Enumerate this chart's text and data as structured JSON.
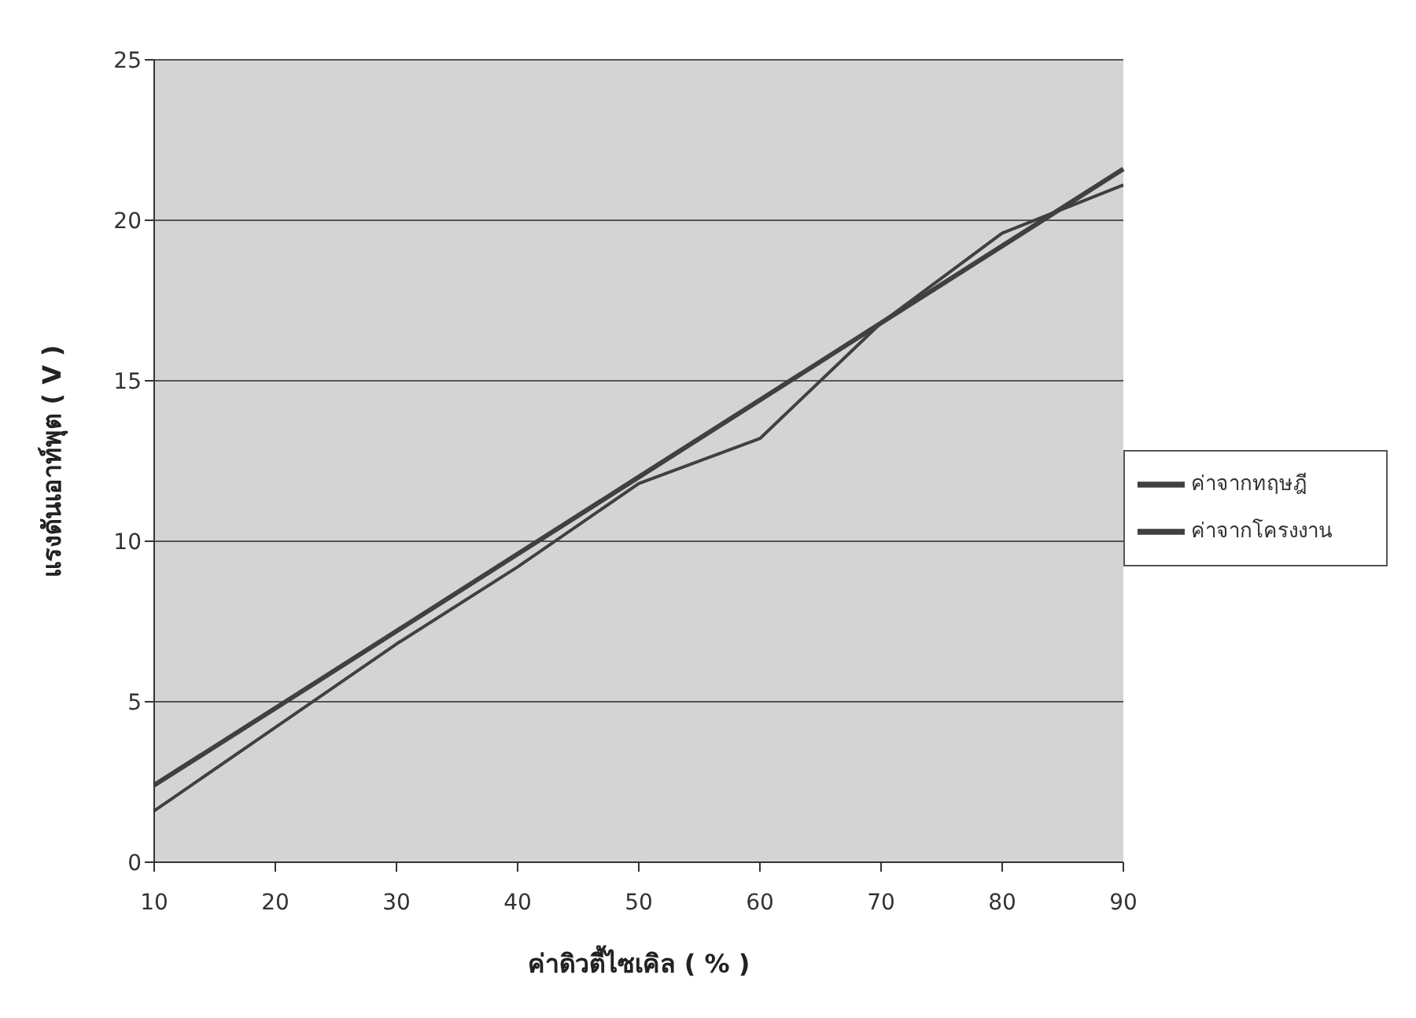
{
  "chart_data": {
    "type": "line",
    "xlabel": "ค่าดิวตี้ไซเคิล ( % )",
    "ylabel": "แรงดันเอาท์พุต ( V )",
    "categories": [
      "10",
      "20",
      "30",
      "40",
      "50",
      "60",
      "70",
      "80",
      "90"
    ],
    "series": [
      {
        "name": "ค่าจากทฤษฎี",
        "color": "#404040",
        "values": [
          2.4,
          4.8,
          7.2,
          9.6,
          12,
          14.4,
          16.8,
          19.2,
          21.6
        ]
      },
      {
        "name": "ค่าจากโครงงาน",
        "color": "#404040",
        "values": [
          1.6,
          4.2,
          6.8,
          9.2,
          11.8,
          13.2,
          16.8,
          19.6,
          21.1
        ]
      }
    ],
    "ylim": [
      0,
      25
    ],
    "yticks": [
      0,
      5,
      10,
      15,
      20,
      25
    ],
    "grid": "y",
    "legend": "right",
    "marker": "none",
    "line_style": "solid"
  }
}
